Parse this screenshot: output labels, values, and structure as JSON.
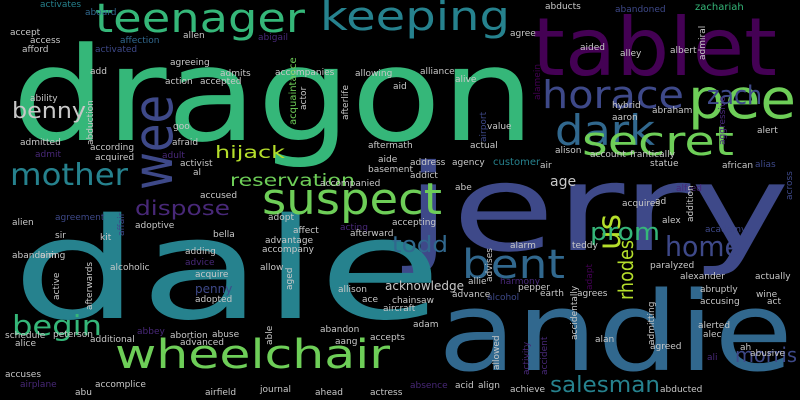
{
  "words": [
    "dragon",
    "jerry",
    "dale",
    "andie",
    "tablet",
    "pee",
    "horace",
    "keeping",
    "teenager",
    "wee",
    "dark",
    "secret",
    "zach",
    "suspect",
    "mother",
    "benny",
    "wheelchair",
    "begin",
    "bent",
    "us",
    "prom",
    "home",
    "rhodes",
    "todd",
    "dispose",
    "reservation",
    "hijack",
    "salesman",
    "morris",
    "acknowledge",
    "activates",
    "aboard",
    "abducts",
    "abandoned",
    "zachariah",
    "accept",
    "affection",
    "allen",
    "abigail",
    "agree",
    "aided",
    "alley",
    "albert",
    "admiral",
    "access",
    "afford",
    "activated",
    "agreeing",
    "admits",
    "accompanies",
    "allowing",
    "alliance",
    "alive",
    "alamein",
    "add",
    "action",
    "accepted",
    "ability",
    "abduction",
    "acquaintance",
    "actor",
    "afterlife",
    "aid",
    "airport",
    "value",
    "aaron",
    "abraham",
    "hybrid",
    "aggressive",
    "admitted",
    "according",
    "goo",
    "afraid",
    "activist",
    "acquired",
    "admit",
    "adult",
    "al",
    "alert",
    "aftermath",
    "actual",
    "alison",
    "account",
    "frantically",
    "statue",
    "african",
    "alias",
    "across",
    "aide",
    "address",
    "agency",
    "customer",
    "basement",
    "addict",
    "air",
    "accompanied",
    "abe",
    "age",
    "alfred",
    "ad",
    "alex",
    "acquires",
    "addition",
    "academy",
    "accused",
    "adopt",
    "affect",
    "acting",
    "afterward",
    "accepting",
    "alien",
    "agreement",
    "sir",
    "affair",
    "adoptive",
    "abandoning",
    "kit",
    "bella",
    "adding",
    "advice",
    "acquire",
    "accompany",
    "advantage",
    "allow",
    "aged",
    "alarm",
    "teddy",
    "allie",
    "harmony",
    "advises",
    "adapt",
    "paralyzed",
    "alexander",
    "actually",
    "aim",
    "active",
    "afterwards",
    "alcoholic",
    "penny",
    "adopted",
    "alcohol",
    "advance",
    "earth",
    "agrees",
    "abruptly",
    "wine",
    "accidentally",
    "accusing",
    "act",
    "allison",
    "ace",
    "chainsaw",
    "aircraft",
    "admitting",
    "alerted",
    "alec",
    "ali",
    "ah",
    "abusive",
    "peterson",
    "abbey",
    "abortion",
    "abuse",
    "additional",
    "advanced",
    "schedule",
    "alice",
    "accuses",
    "airplane",
    "accomplice",
    "abu",
    "airfield",
    "journal",
    "ahead",
    "actress",
    "absence",
    "acid",
    "align",
    "achieve",
    "abducted",
    "able",
    "aang",
    "abandon",
    "accepts",
    "adam",
    "allowed",
    "activity",
    "accident",
    "alan",
    "agreed",
    "pepper"
  ]
}
